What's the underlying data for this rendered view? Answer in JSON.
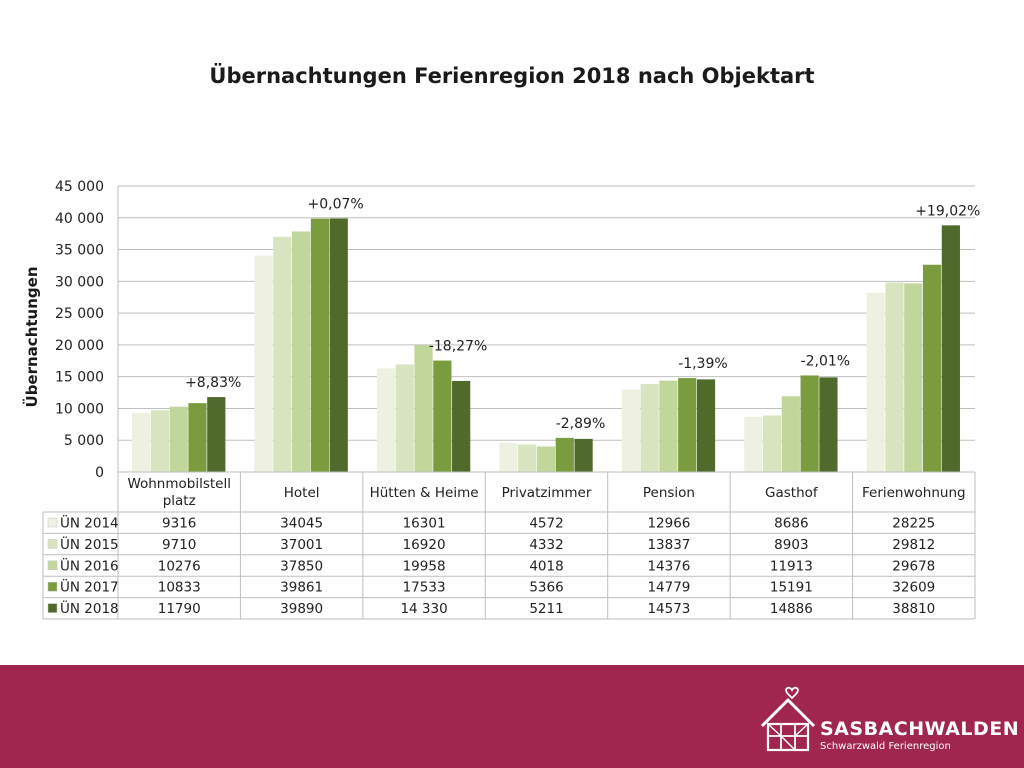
{
  "chart_data": {
    "type": "bar",
    "title": "Übernachtungen Ferienregion 2018 nach Objektart",
    "ylabel": "Übernachtungen",
    "ylim": [
      0,
      45000
    ],
    "yticks": [
      "0",
      "5 000",
      "10 000",
      "15 000",
      "20 000",
      "25 000",
      "30 000",
      "35 000",
      "40 000",
      "45 000"
    ],
    "grid": true,
    "legend": "data-table-below",
    "categories": [
      "Wohnmobilstell platz",
      "Hotel",
      "Hütten & Heime",
      "Privatzimmer",
      "Pension",
      "Gasthof",
      "Ferienwohnung"
    ],
    "category_lines": [
      [
        "Wohnmobilstell",
        "platz"
      ],
      [
        "Hotel"
      ],
      [
        "Hütten & Heime"
      ],
      [
        "Privatzimmer"
      ],
      [
        "Pension"
      ],
      [
        "Gasthof"
      ],
      [
        "Ferienwohnung"
      ]
    ],
    "series": [
      {
        "name": "ÜN 2014",
        "color": "#eef1e2",
        "values": [
          9316,
          34045,
          16301,
          4572,
          12966,
          8686,
          28225
        ],
        "labels": [
          "9316",
          "34045",
          "16301",
          "4572",
          "12966",
          "8686",
          "28225"
        ]
      },
      {
        "name": "ÜN 2015",
        "color": "#d8e3c0",
        "values": [
          9710,
          37001,
          16920,
          4332,
          13837,
          8903,
          29812
        ],
        "labels": [
          "9710",
          "37001",
          "16920",
          "4332",
          "13837",
          "8903",
          "29812"
        ]
      },
      {
        "name": "ÜN 2016",
        "color": "#c0d69a",
        "values": [
          10276,
          37850,
          19958,
          4018,
          14376,
          11913,
          29678
        ],
        "labels": [
          "10276",
          "37850",
          "19958",
          "4018",
          "14376",
          "11913",
          "29678"
        ]
      },
      {
        "name": "ÜN 2017",
        "color": "#7a9c3e",
        "values": [
          10833,
          39861,
          17533,
          5366,
          14779,
          15191,
          32609
        ],
        "labels": [
          "10833",
          "39861",
          "17533",
          "5366",
          "14779",
          "15191",
          "32609"
        ]
      },
      {
        "name": "ÜN 2018",
        "color": "#4f6a2a",
        "values": [
          11790,
          39890,
          14330,
          5211,
          14573,
          14886,
          38810
        ],
        "labels": [
          "11790",
          "39890",
          "14 330",
          "5211",
          "14573",
          "14886",
          "38810"
        ]
      }
    ],
    "annotations": [
      "+8,83%",
      "+0,07%",
      "-18,27%",
      "-2,89%",
      "-1,39%",
      "-2,01%",
      "+19,02%"
    ]
  },
  "brand": {
    "name": "SASBACHWALDEN",
    "tagline": "Schwarzwald Ferienregion",
    "footer_color": "#a0264f"
  }
}
